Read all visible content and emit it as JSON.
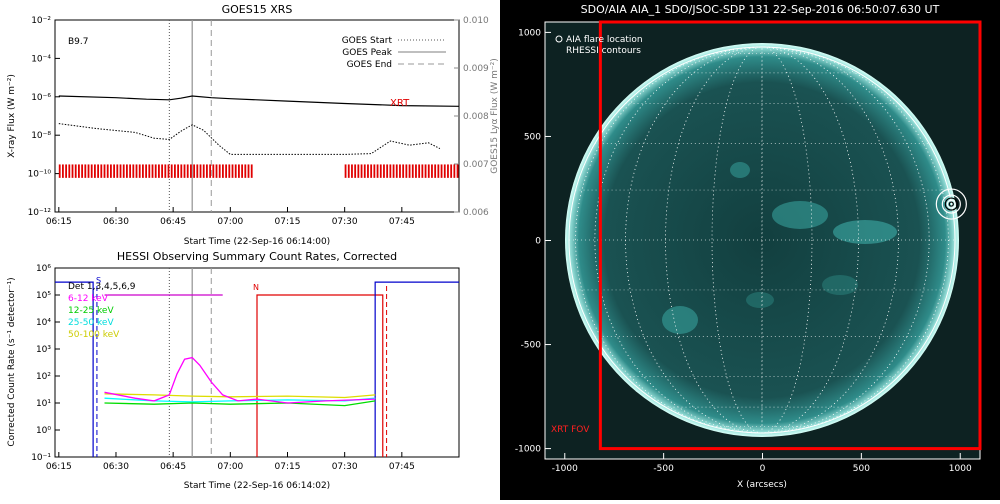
{
  "chart_data": [
    {
      "type": "line",
      "title": "GOES15 XRS",
      "xlabel": "Start Time (22-Sep-16 06:14:00)",
      "ylabel": "X-ray Flux (W m⁻²)",
      "y2label": "GOES15 Lyα Flux (W m⁻²)",
      "x_ticks": [
        "06:15",
        "06:30",
        "06:45",
        "07:00",
        "07:15",
        "07:30",
        "07:45"
      ],
      "y_ticks": [
        "10⁻²",
        "10⁻⁴",
        "10⁻⁶",
        "10⁻⁸",
        "10⁻¹⁰",
        "10⁻¹²"
      ],
      "y2_ticks": [
        "0.010",
        "0.009",
        "0.008",
        "0.007",
        "0.006"
      ],
      "ylim": [
        1e-12,
        0.01
      ],
      "y2lim": [
        0.006,
        0.01
      ],
      "log_y": true,
      "flare_class": "B9.7",
      "markers": {
        "start": "06:44",
        "peak": "06:50",
        "end": "06:55"
      },
      "legend": [
        {
          "name": "GOES Start",
          "style": "dotted"
        },
        {
          "name": "GOES Peak",
          "style": "solid"
        },
        {
          "name": "GOES End",
          "style": "dashed"
        }
      ],
      "xrt_label": "XRT",
      "xrt_coverage": [
        [
          "06:15",
          "07:06"
        ],
        [
          "07:30",
          "08:00"
        ]
      ],
      "series": [
        {
          "name": "long",
          "x": [
            "06:15",
            "06:30",
            "06:38",
            "06:44",
            "06:47",
            "06:50",
            "06:55",
            "07:00",
            "07:15",
            "07:30",
            "07:45",
            "08:00"
          ],
          "values": [
            1.1e-06,
            9e-07,
            7.5e-07,
            7e-07,
            8.5e-07,
            1.1e-06,
            9e-07,
            8e-07,
            6e-07,
            4.5e-07,
            3.5e-07,
            3.2e-07
          ]
        },
        {
          "name": "short",
          "x": [
            "06:15",
            "06:25",
            "06:35",
            "06:40",
            "06:44",
            "06:47",
            "06:50",
            "06:53",
            "06:57",
            "07:00",
            "07:30",
            "07:37",
            "07:42",
            "07:47",
            "07:52",
            "07:55"
          ],
          "values": [
            4e-08,
            2.2e-08,
            1.4e-08,
            7e-09,
            6e-09,
            1.6e-08,
            3.5e-08,
            1.8e-08,
            3e-09,
            1e-09,
            1e-09,
            1.1e-09,
            5e-09,
            3e-09,
            4e-09,
            2e-09
          ]
        }
      ]
    },
    {
      "type": "line",
      "title": "HESSI Observing Summary Count Rates, Corrected",
      "xlabel": "Start Time (22-Sep-16 06:14:02)",
      "ylabel": "Corrected Count Rate (s⁻¹ detector⁻¹)",
      "x_ticks": [
        "06:15",
        "06:30",
        "06:45",
        "07:00",
        "07:15",
        "07:30",
        "07:45"
      ],
      "y_ticks": [
        "10⁶",
        "10⁵",
        "10⁴",
        "10³",
        "10²",
        "10¹",
        "10⁰",
        "10⁻¹"
      ],
      "ylim": [
        0.1,
        1000000.0
      ],
      "log_y": true,
      "detectors": "Det 1,3,4,5,6,9",
      "markers": {
        "start": "06:44",
        "peak": "06:50",
        "end": "06:55"
      },
      "flags": {
        "saa": "S",
        "night": "N"
      },
      "legend": [
        {
          "name": "6-12 keV",
          "color": "#ff00ff"
        },
        {
          "name": "12-25 keV",
          "color": "#00dd00"
        },
        {
          "name": "25-50 keV",
          "color": "#00ffff"
        },
        {
          "name": "50-100 keV",
          "color": "#dddd00"
        }
      ],
      "series": [
        {
          "name": "6-12 keV",
          "x": [
            "06:27",
            "06:35",
            "06:40",
            "06:44",
            "06:46",
            "06:48",
            "06:50",
            "06:52",
            "06:55",
            "06:58",
            "07:02",
            "07:07",
            "07:15",
            "07:25",
            "07:38"
          ],
          "values": [
            25,
            15,
            12,
            20,
            120,
            420,
            480,
            250,
            60,
            20,
            12,
            14,
            10,
            12,
            14
          ]
        },
        {
          "name": "12-25 keV",
          "x": [
            "06:27",
            "06:40",
            "06:50",
            "07:00",
            "07:15",
            "07:30",
            "07:38"
          ],
          "values": [
            10,
            9,
            10,
            9,
            10,
            8,
            12
          ]
        },
        {
          "name": "25-50 keV",
          "x": [
            "06:27",
            "06:40",
            "06:50",
            "07:00",
            "07:15",
            "07:30",
            "07:38"
          ],
          "values": [
            15,
            12,
            11,
            12,
            13,
            12,
            15
          ]
        },
        {
          "name": "50-100 keV",
          "x": [
            "06:27",
            "06:40",
            "06:50",
            "07:00",
            "07:15",
            "07:30",
            "07:38"
          ],
          "values": [
            22,
            20,
            18,
            17,
            18,
            16,
            20
          ]
        }
      ]
    },
    {
      "type": "scatter",
      "title": "SDO/AIA AIA_1 SDO/JSOC-SDP 131 22-Sep-2016 06:50:07.630 UT",
      "xlabel": "X (arcsecs)",
      "ylabel": "",
      "x_ticks": [
        "-1000",
        "-500",
        "0",
        "500",
        "1000"
      ],
      "y_ticks": [
        "1000",
        "500",
        "0",
        "-500",
        "-1000"
      ],
      "xlim": [
        -1100,
        1100
      ],
      "ylim": [
        -1050,
        1050
      ],
      "solar_radius": 1000,
      "legend": [
        "AIA flare location",
        "RHESSI contours"
      ],
      "flare_location": {
        "x": 955,
        "y": 175
      },
      "xrt_fov_label": "XRT FOV",
      "xrt_fov": {
        "x0": -820,
        "x1": 1100,
        "y0": -1000,
        "y1": 1050
      }
    }
  ]
}
